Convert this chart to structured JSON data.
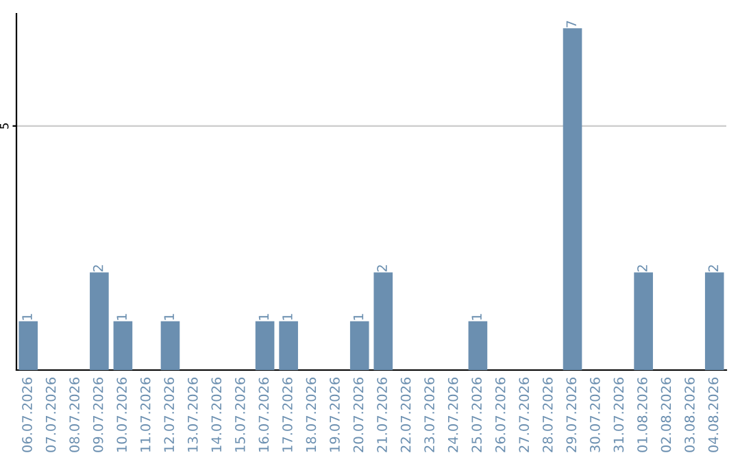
{
  "chart_data": {
    "type": "bar",
    "categories": [
      "06.07.2026",
      "07.07.2026",
      "08.07.2026",
      "09.07.2026",
      "10.07.2026",
      "11.07.2026",
      "12.07.2026",
      "13.07.2026",
      "14.07.2026",
      "15.07.2026",
      "16.07.2026",
      "17.07.2026",
      "18.07.2026",
      "19.07.2026",
      "20.07.2026",
      "21.07.2026",
      "22.07.2026",
      "23.07.2026",
      "24.07.2026",
      "25.07.2026",
      "26.07.2026",
      "27.07.2026",
      "28.07.2026",
      "29.07.2026",
      "30.07.2026",
      "31.07.2026",
      "01.08.2026",
      "02.08.2026",
      "03.08.2026",
      "04.08.2026"
    ],
    "values": [
      1,
      0,
      0,
      2,
      1,
      0,
      1,
      0,
      0,
      0,
      1,
      1,
      0,
      0,
      1,
      2,
      0,
      0,
      0,
      1,
      0,
      0,
      0,
      7,
      0,
      0,
      2,
      0,
      0,
      2
    ],
    "value_labels": [
      "1",
      null,
      null,
      "2",
      "1",
      null,
      "1",
      null,
      null,
      null,
      "1",
      "1",
      null,
      null,
      "1",
      "2",
      null,
      null,
      null,
      "1",
      null,
      null,
      null,
      "7",
      null,
      null,
      "2",
      null,
      null,
      "2"
    ],
    "color": "#6b8fb0",
    "ylim": [
      0,
      7.3
    ],
    "yticks": [
      5
    ],
    "grid": "y",
    "legend": false
  }
}
